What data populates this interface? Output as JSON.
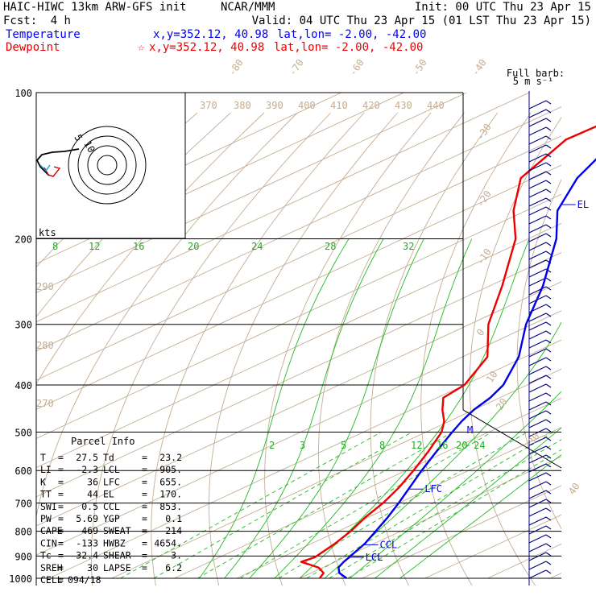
{
  "header": {
    "model": "HAIC-HIWC 13km ARW-GFS init",
    "org": "NCAR/MMM",
    "init": "Init: 00 UTC Thu 23 Apr 15",
    "fcst_label": "Fcst:",
    "fcst_value": "4 h",
    "valid": "Valid: 04 UTC Thu 23 Apr 15 (01 LST Thu 23 Apr 15)"
  },
  "legend": {
    "temperature": {
      "name": "Temperature",
      "xy": "x,y=352.12, 40.98",
      "latlon": "lat,lon= -2.00, -42.00"
    },
    "dewpoint": {
      "name": "Dewpoint",
      "xy": "x,y=352.12, 40.98",
      "latlon": "lat,lon= -2.00, -42.00"
    }
  },
  "colors": {
    "temperature": "#0000ee",
    "dewpoint": "#ee0000",
    "isotherm": "#c4ad92",
    "adiabat": "#c4ad92",
    "moist_adiabat": "#22bb22",
    "mixing_ratio": "#22bb22",
    "isobar": "#000000",
    "wind": "#000080"
  },
  "barb_legend": {
    "line1": "Full barb:",
    "line2": "5 m s⁻¹"
  },
  "hodograph": {
    "units": "kts",
    "ring_labels": [
      "5",
      "10"
    ]
  },
  "parcel_info": {
    "title": "Parcel Info",
    "rows": [
      [
        "T",
        "27.5",
        "Td",
        "23.2"
      ],
      [
        "LI",
        "-2.3",
        "LCL",
        "905."
      ],
      [
        "K",
        "36",
        "LFC",
        "655."
      ],
      [
        "TT",
        "44",
        "EL",
        "170."
      ],
      [
        "SWI",
        "0.5",
        "CCL",
        "853."
      ],
      [
        "PW",
        "5.69",
        "YGP",
        "0.1"
      ],
      [
        "CAPE",
        "469",
        "SWEAT",
        "214"
      ],
      [
        "CIN",
        "-133",
        "HWBZ",
        "4654."
      ],
      [
        "Tc",
        "32.4",
        "SHEAR",
        "3."
      ],
      [
        "SREH",
        "30",
        "LAPSE",
        "6.2"
      ],
      [
        "CELL",
        "094/18",
        "",
        ""
      ]
    ]
  },
  "chart_data": {
    "type": "line",
    "title": "HAIC-HIWC 13km ARW-GFS init",
    "y_axis": {
      "label": "",
      "scale": "log",
      "ylim": [
        1000,
        100
      ],
      "ticks": [
        100,
        200,
        300,
        400,
        500,
        600,
        700,
        800,
        900,
        1000
      ]
    },
    "x_axis": {
      "label": "",
      "skewed": true,
      "isotherm_labels": [
        -80,
        -70,
        -60,
        -50,
        -40,
        -30,
        -20,
        -10,
        0,
        10,
        20,
        30,
        40
      ]
    },
    "theta_labels": [
      270,
      280,
      290,
      370,
      380,
      390,
      400,
      410,
      420,
      430,
      440
    ],
    "moist_adiabat_labels_upper": [
      8,
      12,
      16,
      20,
      24,
      28,
      32
    ],
    "mixing_ratio_labels": [
      2,
      3,
      5,
      8,
      12,
      16,
      20,
      24
    ],
    "series": [
      {
        "name": "Temperature",
        "pressure": [
          1000,
          975,
          950,
          925,
          905,
          900,
          850,
          800,
          750,
          700,
          650,
          600,
          550,
          500,
          475,
          450,
          425,
          400,
          350,
          300,
          250,
          200,
          175,
          150,
          125,
          100
        ],
        "values": [
          27.5,
          24.5,
          22.5,
          21.4,
          20.7,
          20.5,
          18.6,
          16.0,
          13.2,
          10.0,
          6.4,
          2.5,
          -1.5,
          -5.8,
          -8.0,
          -10.0,
          -11.5,
          -13.8,
          -21.0,
          -31.0,
          -41.5,
          -55.5,
          -65.0,
          -73.0,
          -80.0,
          -78.0
        ]
      },
      {
        "name": "Dewpoint",
        "pressure": [
          1000,
          975,
          950,
          925,
          905,
          900,
          850,
          800,
          750,
          700,
          650,
          600,
          550,
          500,
          475,
          450,
          425,
          400,
          350,
          300,
          250,
          200,
          175,
          150,
          125,
          100
        ],
        "values": [
          23.2,
          22.0,
          19.3,
          14.6,
          15.2,
          15.1,
          13.8,
          12.0,
          9.6,
          7.5,
          4.7,
          1.2,
          -2.8,
          -7.5,
          -10.8,
          -15.0,
          -19.0,
          -20.0,
          -26.0,
          -37.0,
          -48.0,
          -62.0,
          -72.0,
          -82.0,
          -88.0,
          -87.0
        ]
      }
    ],
    "levels": {
      "EL": 170,
      "LFC": 655,
      "CCL": 853,
      "LCL": 905,
      "M": 495
    },
    "grid": true
  }
}
